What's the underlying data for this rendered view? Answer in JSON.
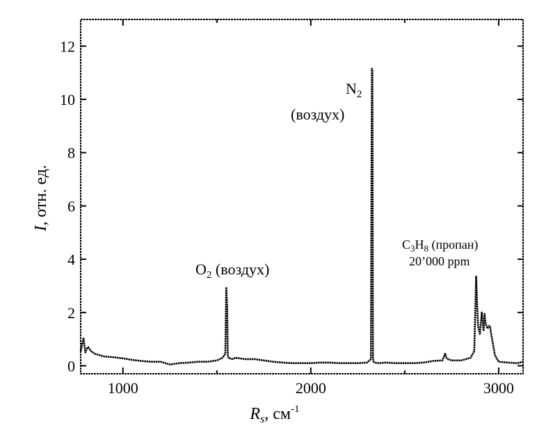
{
  "chart_data": {
    "type": "line",
    "xlabel_main": "R",
    "xlabel_sub": "s",
    "xlabel_rest": ", см",
    "xlabel_sup": "-1",
    "ylabel_main": "I",
    "ylabel_rest": ", отн. ед.",
    "xlim": [
      775,
      3130
    ],
    "ylim": [
      -0.3,
      13.0
    ],
    "x_ticks": [
      1000,
      2000,
      3000
    ],
    "x_minor_ticks": [
      1500,
      2500
    ],
    "y_ticks": [
      0,
      2,
      4,
      6,
      8,
      10,
      12
    ],
    "grid": false,
    "annotations": {
      "o2": {
        "main": "O",
        "sub": "2",
        "rest": " (воздух)"
      },
      "n2": {
        "main": "N",
        "sub": "2",
        "line2": "(воздух)"
      },
      "c3h8": {
        "c": "C",
        "c_sub": "3",
        "h": "H",
        "h_sub": "8",
        "rest": " (пропан)",
        "line2": "20’000 ppm"
      }
    },
    "series": [
      {
        "x": [
          775,
          790,
          795,
          800,
          805,
          815,
          830,
          850,
          900,
          950,
          1000,
          1050,
          1100,
          1150,
          1200,
          1250,
          1300,
          1350,
          1400,
          1450,
          1500,
          1530,
          1545,
          1550,
          1552,
          1555,
          1558,
          1562,
          1580,
          1600,
          1650,
          1700,
          1750,
          1800,
          1850,
          1900,
          1950,
          2000,
          2050,
          2100,
          2150,
          2200,
          2250,
          2300,
          2320,
          2325,
          2328,
          2331,
          2334,
          2340,
          2360,
          2400,
          2450,
          2500,
          2550,
          2600,
          2650,
          2700,
          2715,
          2722,
          2730,
          2750,
          2800,
          2850,
          2870,
          2880,
          2885,
          2890,
          2900,
          2910,
          2920,
          2925,
          2930,
          2940,
          2950,
          2955,
          2960,
          2970,
          2980,
          3000,
          3050,
          3100,
          3130
        ],
        "y": [
          0.55,
          1.05,
          0.75,
          0.5,
          0.62,
          0.7,
          0.55,
          0.45,
          0.35,
          0.32,
          0.28,
          0.22,
          0.18,
          0.15,
          0.15,
          0.05,
          0.1,
          0.12,
          0.15,
          0.15,
          0.2,
          0.3,
          0.45,
          2.95,
          2.6,
          2.2,
          0.4,
          0.3,
          0.25,
          0.3,
          0.25,
          0.25,
          0.2,
          0.15,
          0.12,
          0.1,
          0.1,
          0.1,
          0.12,
          0.12,
          0.1,
          0.1,
          0.1,
          0.12,
          0.25,
          11.15,
          11.1,
          0.3,
          0.15,
          0.12,
          0.1,
          0.12,
          0.1,
          0.1,
          0.1,
          0.12,
          0.18,
          0.2,
          0.45,
          0.3,
          0.25,
          0.2,
          0.2,
          0.3,
          0.55,
          3.35,
          2.4,
          1.5,
          1.2,
          2.0,
          1.3,
          1.95,
          1.6,
          1.4,
          1.5,
          1.45,
          1.2,
          0.8,
          0.4,
          0.15,
          0.12,
          0.1,
          0.15
        ]
      }
    ]
  }
}
